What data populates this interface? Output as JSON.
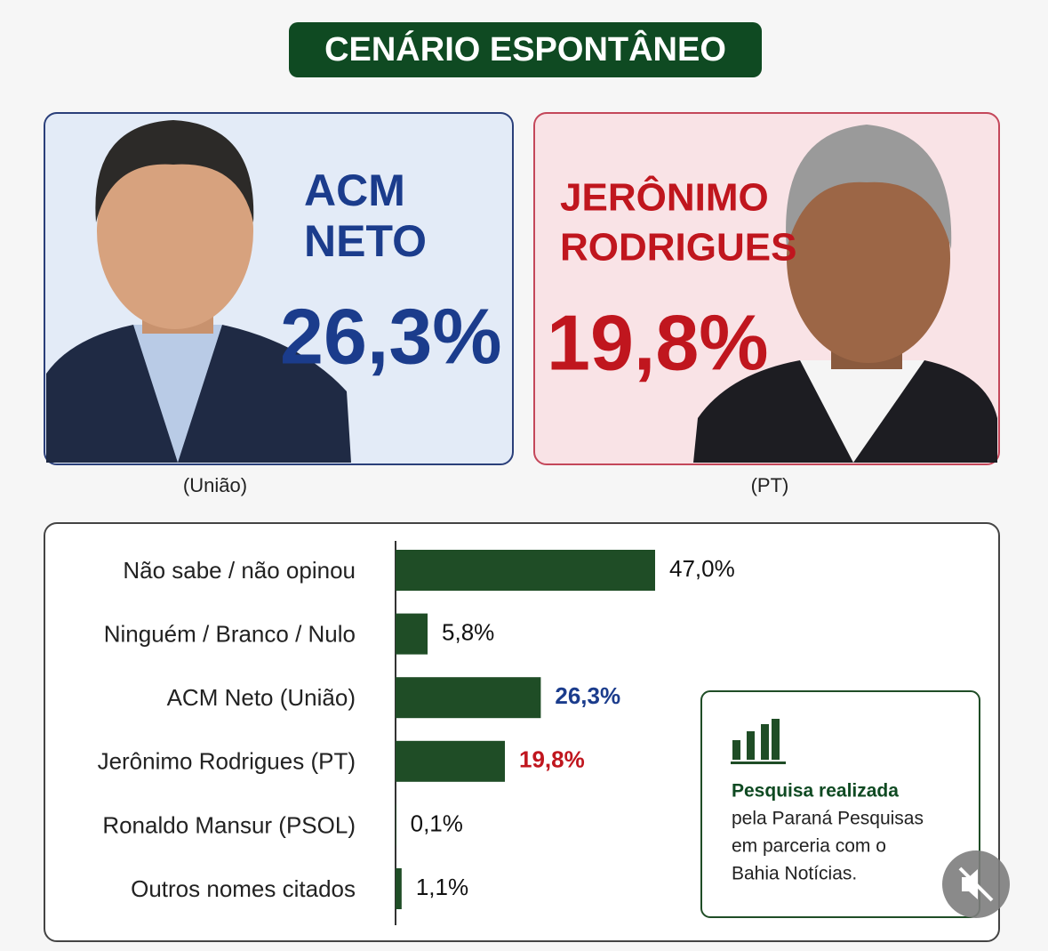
{
  "title": "CENÁRIO ESPONTÂNEO",
  "candidates": [
    {
      "name": [
        "ACM",
        "NETO"
      ],
      "percent": "26,3%",
      "party": "(União)"
    },
    {
      "name": [
        "JERÔNIMO",
        "RODRIGUES"
      ],
      "percent": "19,8%",
      "party": "(PT)"
    }
  ],
  "chart_data": {
    "type": "bar",
    "orientation": "horizontal",
    "categories": [
      "Não sabe / não opinou",
      "Ninguém / Branco / Nulo",
      "ACM Neto (União)",
      "Jerônimo Rodrigues (PT)",
      "Ronaldo Mansur (PSOL)",
      "Outros nomes citados"
    ],
    "values": [
      47.0,
      5.8,
      26.3,
      19.8,
      0.1,
      1.1
    ],
    "value_labels": [
      "47,0%",
      "5,8%",
      "26,3%",
      "19,8%",
      "0,1%",
      "1,1%"
    ],
    "color": "#1f4d26",
    "value_label_colors": [
      "#111111",
      "#111111",
      "#1b3c8c",
      "#c0161e",
      "#111111",
      "#111111"
    ]
  },
  "note": {
    "heading": "Pesquisa realizada",
    "lines": [
      "pela Paraná Pesquisas",
      "em parceria com o",
      "Bahia Notícias."
    ]
  }
}
